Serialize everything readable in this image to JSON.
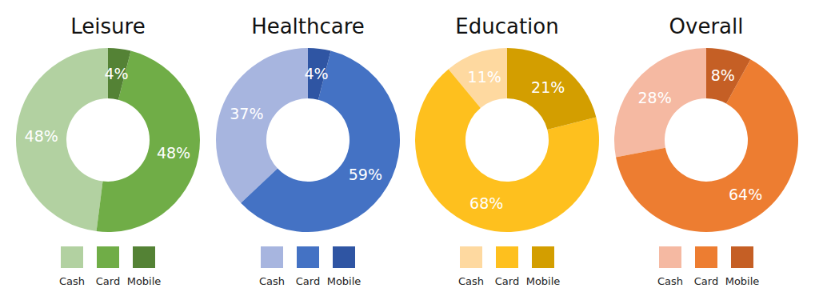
{
  "chart_data": [
    {
      "type": "donut",
      "title": "Leisure",
      "categories": [
        "Cash",
        "Card",
        "Mobile"
      ],
      "values": [
        48,
        48,
        4
      ],
      "value_labels": [
        "48%",
        "48%",
        "4%"
      ],
      "colors": [
        "#b2d1a1",
        "#70ad47",
        "#548235"
      ],
      "data_labels": true,
      "legend": "bottom"
    },
    {
      "type": "donut",
      "title": "Healthcare",
      "categories": [
        "Cash",
        "Card",
        "Mobile"
      ],
      "values": [
        37,
        59,
        4
      ],
      "value_labels": [
        "37%",
        "59%",
        "4%"
      ],
      "colors": [
        "#a7b5df",
        "#4472c4",
        "#2f55a3"
      ],
      "data_labels": true,
      "legend": "bottom"
    },
    {
      "type": "donut",
      "title": "Education",
      "categories": [
        "Cash",
        "Card",
        "Mobile"
      ],
      "values": [
        11,
        68,
        21
      ],
      "value_labels": [
        "11%",
        "68%",
        "21%"
      ],
      "colors": [
        "#fed9a0",
        "#fec01e",
        "#d39e00"
      ],
      "data_labels": true,
      "legend": "bottom"
    },
    {
      "type": "donut",
      "title": "Overall",
      "categories": [
        "Cash",
        "Card",
        "Mobile"
      ],
      "values": [
        28,
        64,
        8
      ],
      "value_labels": [
        "28%",
        "64%",
        "8%"
      ],
      "colors": [
        "#f5b9a2",
        "#ed7d31",
        "#c55f25"
      ],
      "data_labels": true,
      "legend": "bottom"
    }
  ]
}
